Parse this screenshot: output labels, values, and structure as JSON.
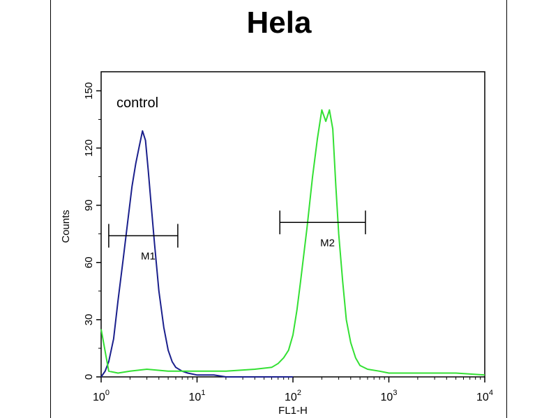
{
  "chart_data": {
    "type": "line",
    "title": "Hela",
    "xlabel": "FL1-H",
    "ylabel": "Counts",
    "x_scale": "log",
    "xlim": [
      1,
      10000
    ],
    "ylim": [
      0,
      160
    ],
    "x_ticks": [
      {
        "value": 1,
        "base": "10",
        "exp": "0"
      },
      {
        "value": 10,
        "base": "10",
        "exp": "1"
      },
      {
        "value": 100,
        "base": "10",
        "exp": "2"
      },
      {
        "value": 1000,
        "base": "10",
        "exp": "3"
      },
      {
        "value": 10000,
        "base": "10",
        "exp": "4"
      }
    ],
    "y_ticks": [
      "0",
      "30",
      "60",
      "90",
      "120",
      "150"
    ],
    "annotation": "control",
    "markers": [
      {
        "label": "M1",
        "x_start": 1.2,
        "x_end": 6.3,
        "y": 74
      },
      {
        "label": "M2",
        "x_start": 73,
        "x_end": 570,
        "y": 81
      }
    ],
    "series": [
      {
        "color": "#1a1f8c",
        "x": [
          1,
          1.1,
          1.2,
          1.35,
          1.5,
          1.7,
          1.9,
          2.1,
          2.3,
          2.5,
          2.7,
          2.9,
          3.1,
          3.3,
          3.6,
          4.0,
          4.5,
          5.0,
          5.5,
          6.0,
          7.0,
          8.0,
          10,
          15,
          20,
          30,
          50,
          100
        ],
        "y": [
          0,
          3,
          8,
          20,
          40,
          62,
          82,
          100,
          112,
          121,
          129,
          124,
          108,
          92,
          70,
          45,
          26,
          14,
          8,
          5,
          3,
          2,
          1,
          1,
          0,
          0,
          0,
          0
        ]
      },
      {
        "color": "#33e033",
        "x": [
          1,
          1.2,
          1.5,
          2,
          3,
          5,
          10,
          20,
          40,
          60,
          70,
          80,
          90,
          100,
          110,
          120,
          140,
          160,
          180,
          200,
          220,
          240,
          260,
          280,
          300,
          330,
          360,
          400,
          450,
          500,
          600,
          800,
          1000,
          2000,
          5000,
          10000
        ],
        "y": [
          25,
          3,
          2,
          3,
          4,
          3,
          3,
          3,
          4,
          5,
          7,
          10,
          14,
          22,
          35,
          50,
          78,
          105,
          125,
          140,
          134,
          140,
          130,
          100,
          75,
          50,
          30,
          18,
          10,
          6,
          4,
          3,
          2,
          2,
          2,
          1
        ]
      }
    ]
  }
}
